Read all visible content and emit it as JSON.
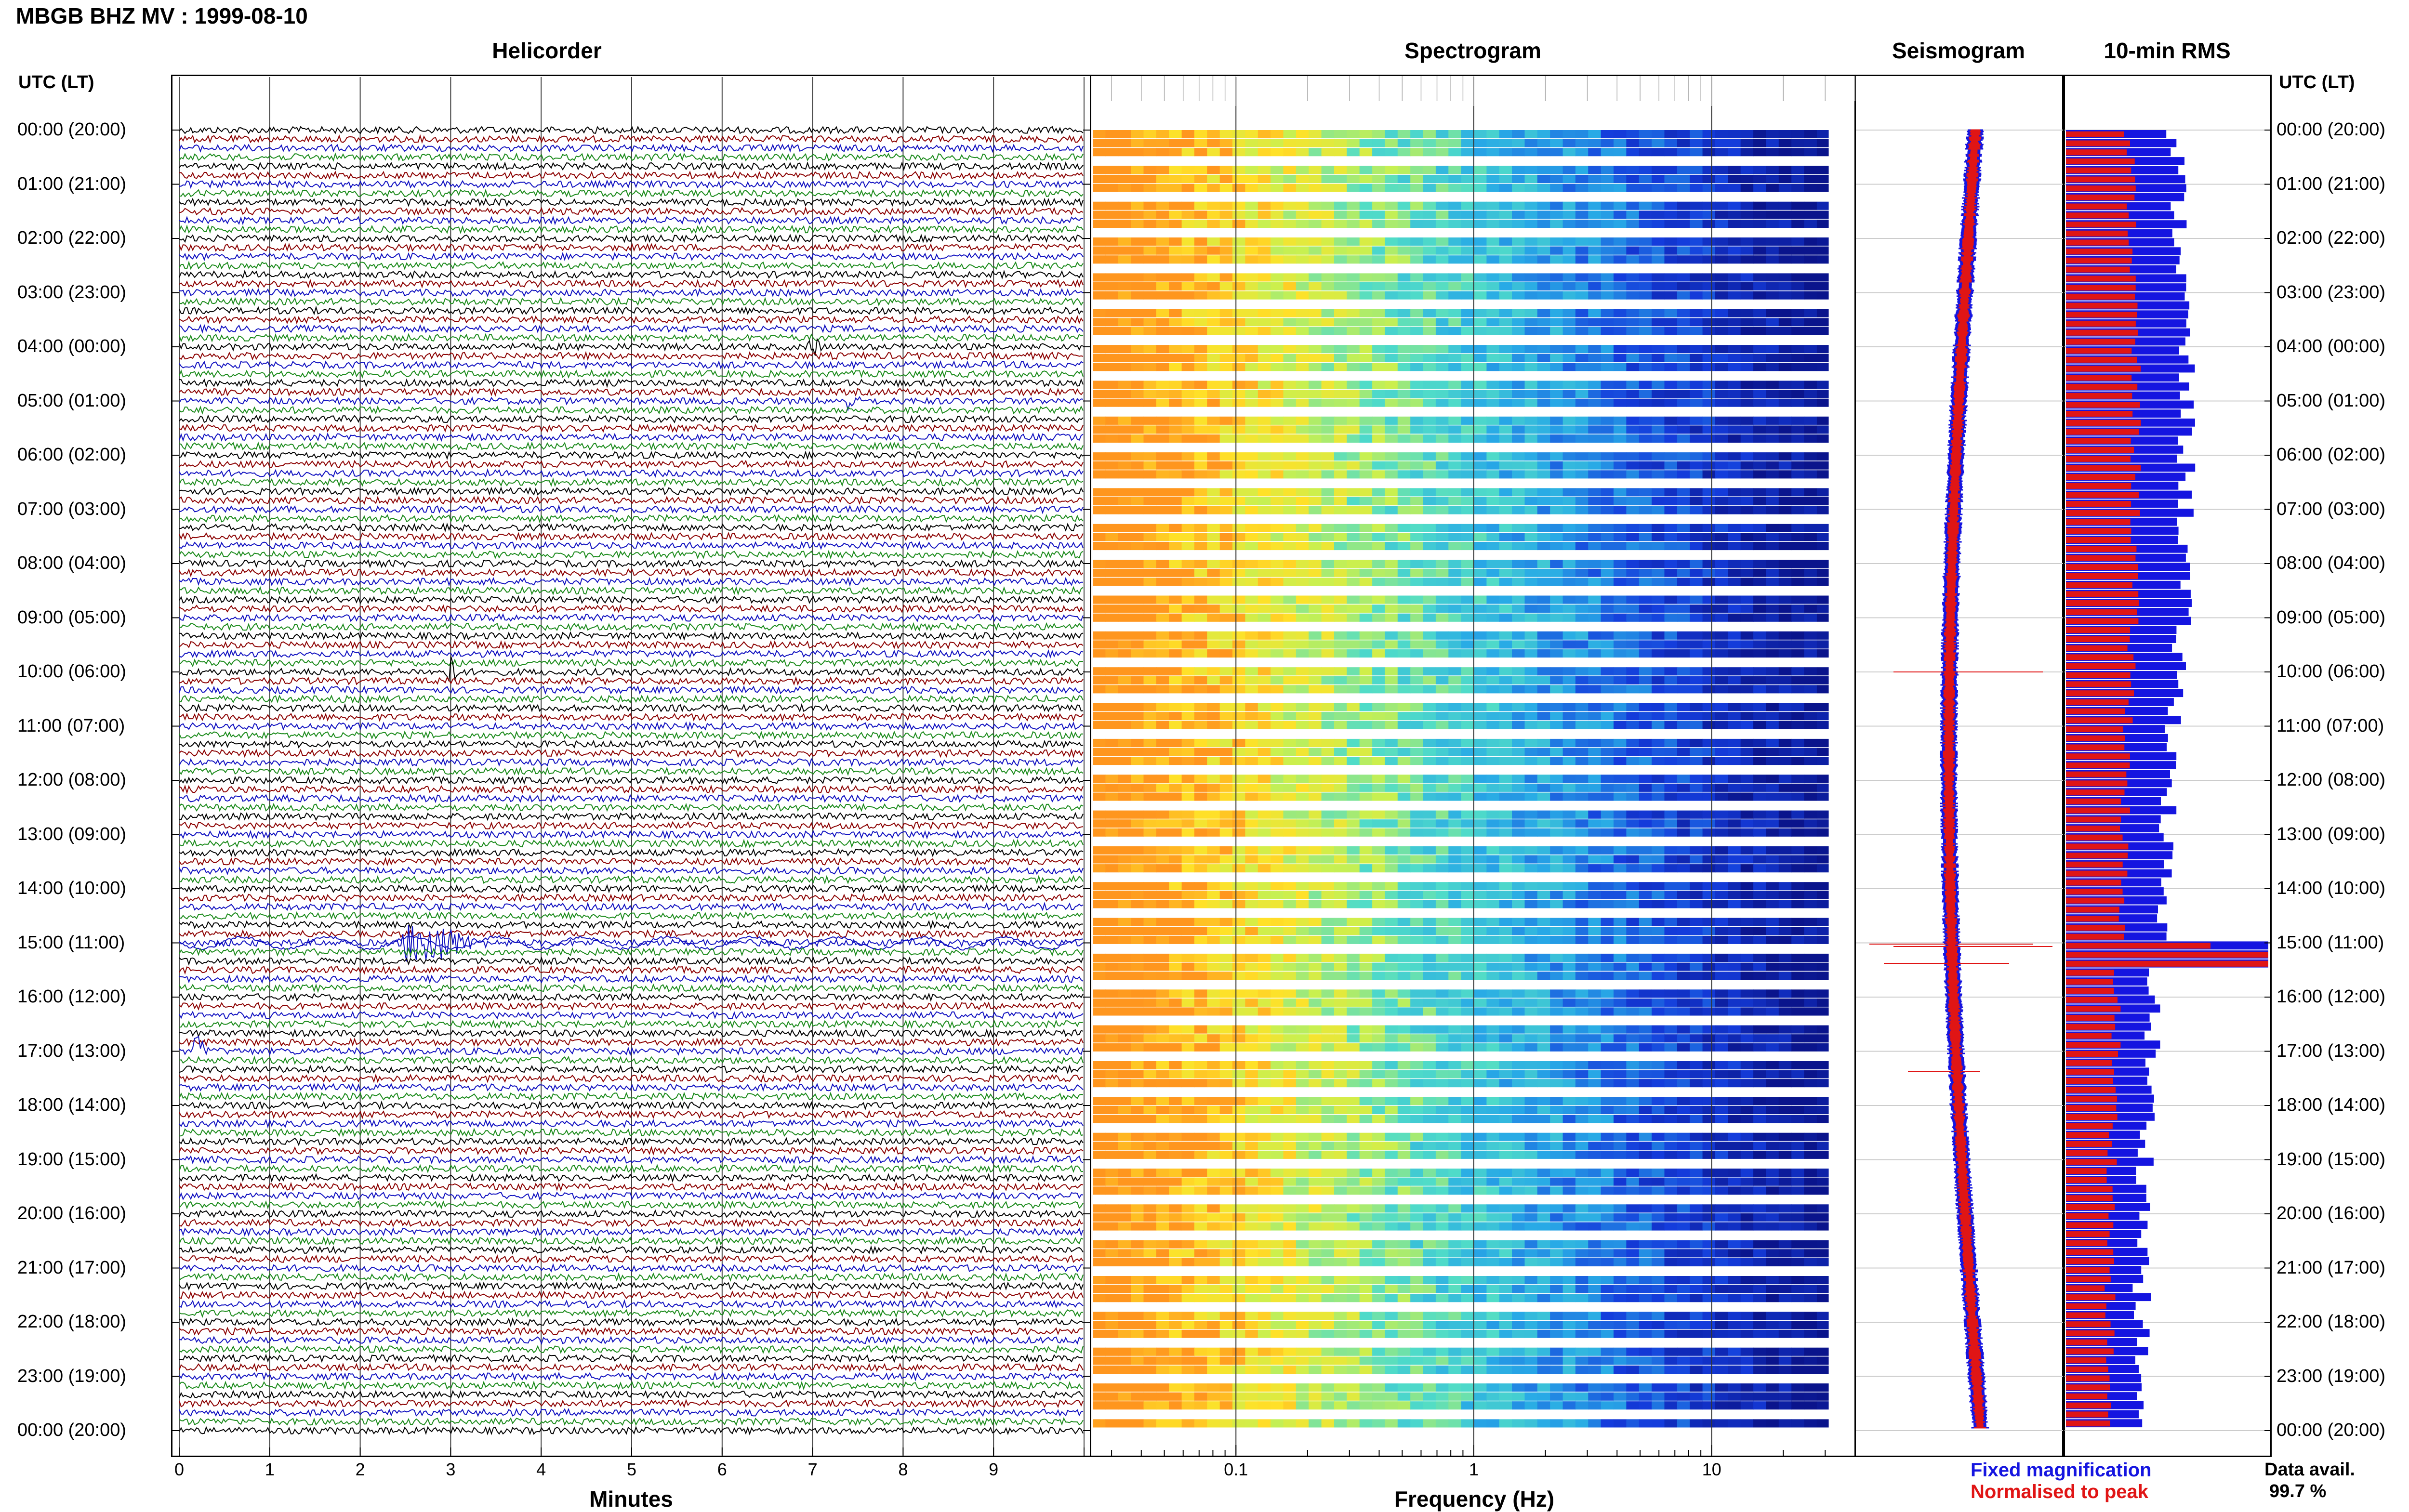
{
  "header": {
    "title": "MBGB BHZ MV : 1999-08-10"
  },
  "panels": {
    "helicorder": "Helicorder",
    "spectrogram": "Spectrogram",
    "seismogram": "Seismogram",
    "rms": "10-min RMS"
  },
  "time_axis": {
    "label_left": "UTC (LT)",
    "label_right": "UTC (LT)",
    "hours": [
      "00:00 (20:00)",
      "01:00 (21:00)",
      "02:00 (22:00)",
      "03:00 (23:00)",
      "04:00 (00:00)",
      "05:00 (01:00)",
      "06:00 (02:00)",
      "07:00 (03:00)",
      "08:00 (04:00)",
      "09:00 (05:00)",
      "10:00 (06:00)",
      "11:00 (07:00)",
      "12:00 (08:00)",
      "13:00 (09:00)",
      "14:00 (10:00)",
      "15:00 (11:00)",
      "16:00 (12:00)",
      "17:00 (13:00)",
      "18:00 (14:00)",
      "19:00 (15:00)",
      "20:00 (16:00)",
      "21:00 (17:00)",
      "22:00 (18:00)",
      "23:00 (19:00)",
      "00:00 (20:00)"
    ]
  },
  "helicorder_axis": {
    "label": "Minutes",
    "ticks": [
      "0",
      "1",
      "2",
      "3",
      "4",
      "5",
      "6",
      "7",
      "8",
      "9"
    ]
  },
  "spectrogram_axis": {
    "label": "Frequency (Hz)",
    "ticks": [
      "0.1",
      "1",
      "10"
    ],
    "scale": "log"
  },
  "legend": {
    "fixed": "Fixed magnification",
    "normalised": "Normalised to peak",
    "fixed_color": "#1515e0",
    "normalised_color": "#e01515"
  },
  "data_availability": {
    "label": "Data avail.",
    "value": "99.7 %"
  },
  "chart_data": [
    {
      "type": "line",
      "title": "Helicorder",
      "xlabel": "Minutes",
      "xlim": [
        0,
        10
      ],
      "rows_per_hour": 6,
      "trace_colors": [
        "#000000",
        "#8b0000",
        "#1010c0",
        "#1a8a1a"
      ],
      "events": [
        {
          "hour": 4,
          "minute": 7.0,
          "amplitude": "small"
        },
        {
          "hour": 5,
          "minute": 7.4,
          "amplitude": "small"
        },
        {
          "hour": 10,
          "minute": 3.0,
          "amplitude": "medium"
        },
        {
          "hour": 15,
          "minute": 2.7,
          "amplitude": "large"
        },
        {
          "hour": 17,
          "minute": 0.2,
          "amplitude": "medium"
        }
      ]
    },
    {
      "type": "heatmap",
      "title": "Spectrogram",
      "xlabel": "Frequency (Hz)",
      "xscale": "log",
      "xlim": [
        0.025,
        40
      ],
      "rows": 145
    },
    {
      "type": "line",
      "title": "Seismogram",
      "series": [
        {
          "name": "Fixed magnification",
          "color": "#1515e0"
        },
        {
          "name": "Normalised to peak",
          "color": "#e01515"
        }
      ]
    },
    {
      "type": "bar",
      "title": "10-min RMS",
      "series": [
        {
          "name": "Fixed magnification",
          "color": "#1515e0"
        },
        {
          "name": "Normalised to peak",
          "color": "#e01515"
        }
      ],
      "peak_hour": 15
    }
  ]
}
